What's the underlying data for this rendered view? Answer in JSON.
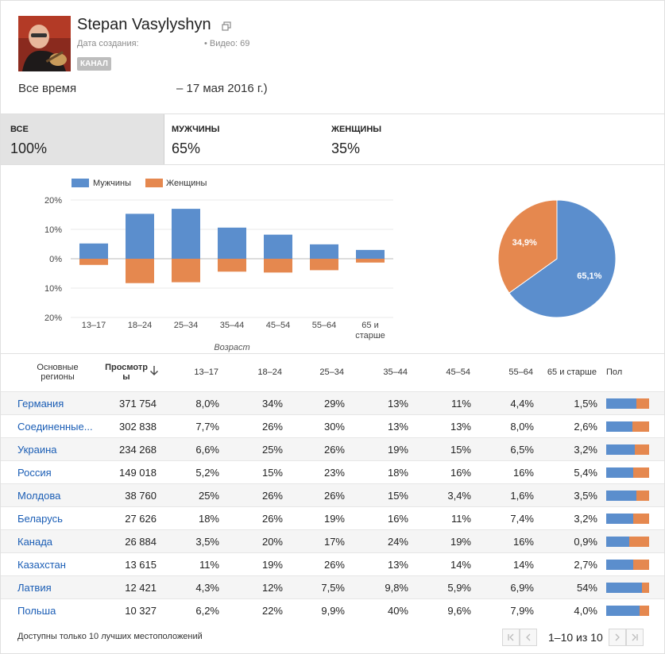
{
  "header": {
    "channel_name": "Stepan Vasylyshyn",
    "created_label": "Дата создания:",
    "videos_label": "• Видео: 69",
    "badge": "КАНАЛ",
    "period_label": "Все время",
    "period_range": "– 17 мая 2016 г.)"
  },
  "tabs": [
    {
      "label": "ВСЕ",
      "value": "100%"
    },
    {
      "label": "МУЖЧИНЫ",
      "value": "65%"
    },
    {
      "label": "ЖЕНЩИНЫ",
      "value": "35%"
    }
  ],
  "colors": {
    "male": "#5b8ecd",
    "female": "#e5884f"
  },
  "chart_data": [
    {
      "type": "bar",
      "legend": [
        "Мужчины",
        "Женщины"
      ],
      "legend_placement": "top-left",
      "xlabel": "Возраст",
      "categories": [
        "13–17",
        "18–24",
        "25–34",
        "35–44",
        "45–54",
        "55–64",
        "65 и старше"
      ],
      "series": [
        {
          "name": "Мужчины",
          "values": [
            5.2,
            15.3,
            17.0,
            10.6,
            8.2,
            4.9,
            3.0
          ]
        },
        {
          "name": "Женщины",
          "values": [
            2.1,
            8.3,
            8.0,
            4.4,
            4.7,
            3.9,
            1.3
          ]
        }
      ],
      "y_ticks": [
        "20%",
        "10%",
        "0%",
        "10%",
        "20%"
      ],
      "ylim": [
        -20,
        20
      ],
      "grid": true
    },
    {
      "type": "pie",
      "slices": [
        {
          "name": "Мужчины",
          "value": 65.1,
          "label": "65,1%"
        },
        {
          "name": "Женщины",
          "value": 34.9,
          "label": "34,9%"
        }
      ]
    }
  ],
  "table": {
    "headers": {
      "region": "Основные регионы",
      "views_line1": "Просмотр",
      "views_line2": "ы",
      "ages": [
        "13–17",
        "18–24",
        "25–34",
        "35–44",
        "45–54",
        "55–64",
        "65 и старше"
      ],
      "gender": "Пол"
    },
    "rows": [
      {
        "region": "Германия",
        "views": "371 754",
        "ages": [
          "8,0%",
          "34%",
          "29%",
          "13%",
          "11%",
          "4,4%",
          "1,5%"
        ],
        "male_share": 0.7
      },
      {
        "region": "Соединенные...",
        "views": "302 838",
        "ages": [
          "7,7%",
          "26%",
          "30%",
          "13%",
          "13%",
          "8,0%",
          "2,6%"
        ],
        "male_share": 0.62
      },
      {
        "region": "Украина",
        "views": "234 268",
        "ages": [
          "6,6%",
          "25%",
          "26%",
          "19%",
          "15%",
          "6,5%",
          "3,2%"
        ],
        "male_share": 0.66
      },
      {
        "region": "Россия",
        "views": "149 018",
        "ages": [
          "5,2%",
          "15%",
          "23%",
          "18%",
          "16%",
          "16%",
          "5,4%"
        ],
        "male_share": 0.63
      },
      {
        "region": "Молдова",
        "views": "38 760",
        "ages": [
          "25%",
          "26%",
          "26%",
          "15%",
          "3,4%",
          "1,6%",
          "3,5%"
        ],
        "male_share": 0.7
      },
      {
        "region": "Беларусь",
        "views": "27 626",
        "ages": [
          "18%",
          "26%",
          "19%",
          "16%",
          "11%",
          "7,4%",
          "3,2%"
        ],
        "male_share": 0.63
      },
      {
        "region": "Канада",
        "views": "26 884",
        "ages": [
          "3,5%",
          "20%",
          "17%",
          "24%",
          "19%",
          "16%",
          "0,9%"
        ],
        "male_share": 0.54
      },
      {
        "region": "Казахстан",
        "views": "13 615",
        "ages": [
          "11%",
          "19%",
          "26%",
          "13%",
          "14%",
          "14%",
          "2,7%"
        ],
        "male_share": 0.63
      },
      {
        "region": "Латвия",
        "views": "12 421",
        "ages": [
          "4,3%",
          "12%",
          "7,5%",
          "9,8%",
          "5,9%",
          "6,9%",
          "54%"
        ],
        "male_share": 0.83
      },
      {
        "region": "Польша",
        "views": "10 327",
        "ages": [
          "6,2%",
          "22%",
          "9,9%",
          "40%",
          "9,6%",
          "7,9%",
          "4,0%"
        ],
        "male_share": 0.78
      }
    ]
  },
  "footer": {
    "note": "Доступны только 10 лучших местоположений",
    "pagination": "1–10 из 10"
  }
}
